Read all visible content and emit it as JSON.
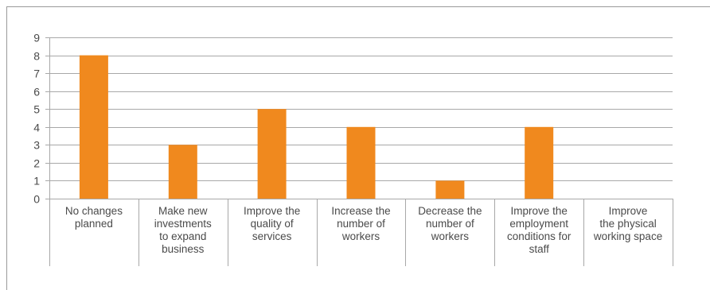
{
  "chart_data": {
    "type": "bar",
    "categories": [
      "No changes\nplanned",
      "Make new\ninvestments\nto expand\nbusiness",
      "Improve the\nquality of\nservices",
      "Increase the\nnumber of\nworkers",
      "Decrease the\nnumber of\nworkers",
      "Improve the\nemployment\nconditions for\nstaff",
      "Improve\nthe physical\nworking space"
    ],
    "values": [
      8,
      3,
      5,
      4,
      1,
      4,
      0
    ],
    "y_ticks": [
      "0",
      "1",
      "2",
      "3",
      "4",
      "5",
      "6",
      "7",
      "8",
      "9"
    ],
    "ylim": [
      0,
      9
    ],
    "title": "",
    "xlabel": "",
    "ylabel": "",
    "grid": true,
    "bar_color": "#f0891e",
    "grid_color": "#a8a8a8"
  }
}
